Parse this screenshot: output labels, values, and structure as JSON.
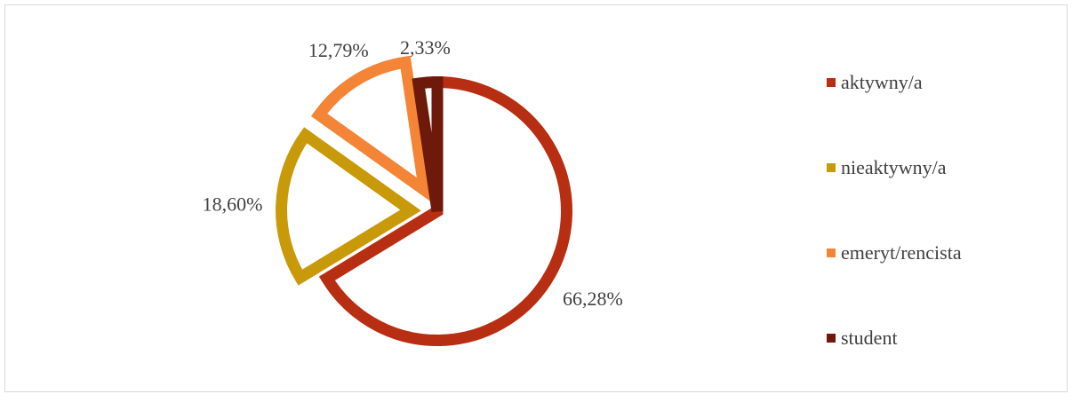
{
  "chart_data": {
    "type": "pie",
    "categories": [
      "aktywny/a",
      "nieaktywny/a",
      "emeryt/rencista",
      "student"
    ],
    "values": [
      66.28,
      18.6,
      12.79,
      2.33
    ],
    "value_labels": [
      "66,28%",
      "18,60%",
      "12,79%",
      "2,33%"
    ],
    "colors": [
      "#b82e12",
      "#c89a0a",
      "#f58536",
      "#6e1a0a"
    ],
    "style": "exploded-outline",
    "legend_position": "right"
  }
}
